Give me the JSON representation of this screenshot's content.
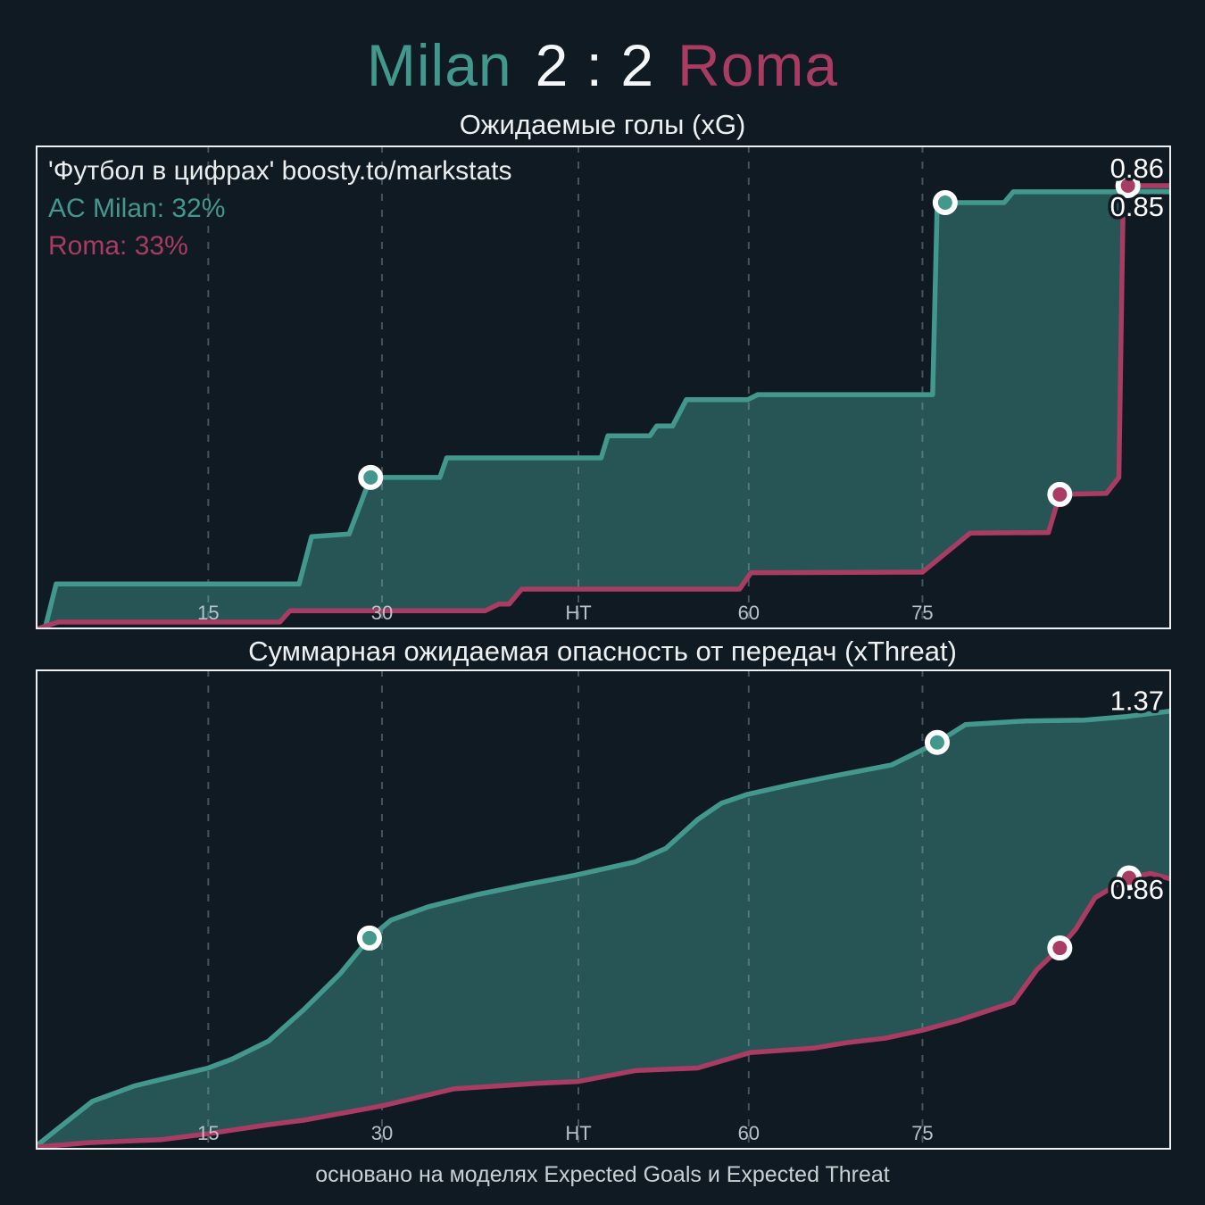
{
  "header": {
    "home_team": "Milan",
    "score": "2 : 2",
    "away_team": "Roma"
  },
  "footer": {
    "text": "основано на моделях Expected Goals и Expected Threat"
  },
  "colors": {
    "bg": "#101a23",
    "home": "#43988e",
    "away": "#a93c62",
    "band_fill": "#43988e",
    "grid": "#9db0ba",
    "tick": "#b9c2c9",
    "value_label": "#ffffff",
    "border": "#eef1f3",
    "marker_ring": "#ffffff"
  },
  "chart_data": {
    "type": "line",
    "x_axis": "match minute (0 - 90+)",
    "charts": [
      {
        "title": "Ожидаемые голы (xG)",
        "watermark": "'Футбол в цифрах' boosty.to/markstats",
        "win_prob": {
          "home": "AC Milan: 32%",
          "away": "Roma: 33%"
        },
        "ylim": [
          0,
          0.94
        ],
        "grid": "vertical-dashed",
        "x_ticks": [
          {
            "label": "15",
            "f": 0.152
          },
          {
            "label": "30",
            "f": 0.305
          },
          {
            "label": "HT",
            "f": 0.478
          },
          {
            "label": "60",
            "f": 0.628
          },
          {
            "label": "75",
            "f": 0.781
          }
        ],
        "series": [
          {
            "name": "AC Milan",
            "color_key": "home",
            "final_value": "0.85",
            "final_label_dy": 17,
            "points": [
              [
                0.0,
                0.0
              ],
              [
                0.008,
                0.0
              ],
              [
                0.018,
                0.088
              ],
              [
                0.232,
                0.088
              ],
              [
                0.243,
                0.18
              ],
              [
                0.276,
                0.185
              ],
              [
                0.295,
                0.295
              ],
              [
                0.356,
                0.295
              ],
              [
                0.362,
                0.333
              ],
              [
                0.498,
                0.333
              ],
              [
                0.504,
                0.376
              ],
              [
                0.541,
                0.376
              ],
              [
                0.547,
                0.395
              ],
              [
                0.561,
                0.395
              ],
              [
                0.573,
                0.446
              ],
              [
                0.627,
                0.446
              ],
              [
                0.636,
                0.456
              ],
              [
                0.79,
                0.456
              ],
              [
                0.794,
                0.829
              ],
              [
                0.853,
                0.829
              ],
              [
                0.861,
                0.85
              ],
              [
                1.0,
                0.85
              ]
            ],
            "goal_markers": [
              [
                0.295,
                0.295
              ],
              [
                0.801,
                0.829
              ]
            ]
          },
          {
            "name": "Roma",
            "color_key": "away",
            "final_value": "0.86",
            "final_label_dy": -19,
            "points": [
              [
                0.0,
                0.0
              ],
              [
                0.02,
                0.014
              ],
              [
                0.215,
                0.014
              ],
              [
                0.224,
                0.036
              ],
              [
                0.396,
                0.036
              ],
              [
                0.408,
                0.049
              ],
              [
                0.417,
                0.049
              ],
              [
                0.428,
                0.078
              ],
              [
                0.62,
                0.078
              ],
              [
                0.63,
                0.11
              ],
              [
                0.781,
                0.111
              ],
              [
                0.823,
                0.187
              ],
              [
                0.892,
                0.188
              ],
              [
                0.902,
                0.262
              ],
              [
                0.943,
                0.264
              ],
              [
                0.954,
                0.295
              ],
              [
                0.958,
                0.862
              ],
              [
                1.0,
                0.862
              ]
            ],
            "goal_markers": [
              [
                0.902,
                0.262
              ],
              [
                0.962,
                0.862
              ]
            ]
          }
        ]
      },
      {
        "title": "Суммарная ожидаемая опасность от передач (xThreat)",
        "watermark": "",
        "win_prob": {
          "home": "",
          "away": ""
        },
        "ylim": [
          0,
          1.5
        ],
        "grid": "vertical-dashed",
        "x_ticks": [
          {
            "label": "15",
            "f": 0.152
          },
          {
            "label": "30",
            "f": 0.305
          },
          {
            "label": "HT",
            "f": 0.478
          },
          {
            "label": "60",
            "f": 0.628
          },
          {
            "label": "75",
            "f": 0.781
          }
        ],
        "series": [
          {
            "name": "AC Milan",
            "color_key": "home",
            "final_value": "1.37",
            "final_label_dy": -11,
            "points": [
              [
                0.0,
                0.01
              ],
              [
                0.02,
                0.067
              ],
              [
                0.05,
                0.151
              ],
              [
                0.087,
                0.199
              ],
              [
                0.152,
                0.255
              ],
              [
                0.173,
                0.283
              ],
              [
                0.205,
                0.339
              ],
              [
                0.236,
                0.437
              ],
              [
                0.268,
                0.549
              ],
              [
                0.294,
                0.661
              ],
              [
                0.313,
                0.717
              ],
              [
                0.346,
                0.759
              ],
              [
                0.388,
                0.796
              ],
              [
                0.433,
                0.829
              ],
              [
                0.475,
                0.857
              ],
              [
                0.528,
                0.899
              ],
              [
                0.555,
                0.941
              ],
              [
                0.583,
                1.031
              ],
              [
                0.604,
                1.082
              ],
              [
                0.627,
                1.11
              ],
              [
                0.669,
                1.143
              ],
              [
                0.701,
                1.166
              ],
              [
                0.754,
                1.202
              ],
              [
                0.794,
                1.272
              ],
              [
                0.819,
                1.328
              ],
              [
                0.872,
                1.339
              ],
              [
                0.924,
                1.342
              ],
              [
                0.961,
                1.353
              ],
              [
                1.0,
                1.37
              ]
            ],
            "goal_markers": [
              [
                0.294,
                0.661
              ],
              [
                0.794,
                1.272
              ]
            ]
          },
          {
            "name": "Roma",
            "color_key": "away",
            "final_value": "0.86",
            "final_label_dy": 12,
            "points": [
              [
                0.0,
                0.008
              ],
              [
                0.047,
                0.022
              ],
              [
                0.11,
                0.031
              ],
              [
                0.152,
                0.05
              ],
              [
                0.205,
                0.078
              ],
              [
                0.236,
                0.092
              ],
              [
                0.305,
                0.137
              ],
              [
                0.368,
                0.19
              ],
              [
                0.441,
                0.207
              ],
              [
                0.478,
                0.213
              ],
              [
                0.528,
                0.247
              ],
              [
                0.583,
                0.255
              ],
              [
                0.629,
                0.303
              ],
              [
                0.685,
                0.317
              ],
              [
                0.714,
                0.334
              ],
              [
                0.748,
                0.348
              ],
              [
                0.781,
                0.373
              ],
              [
                0.813,
                0.404
              ],
              [
                0.861,
                0.46
              ],
              [
                0.882,
                0.563
              ],
              [
                0.902,
                0.63
              ],
              [
                0.916,
                0.689
              ],
              [
                0.933,
                0.787
              ],
              [
                0.953,
                0.829
              ],
              [
                0.963,
                0.849
              ],
              [
                0.982,
                0.863
              ],
              [
                1.0,
                0.845
              ]
            ],
            "goal_markers": [
              [
                0.902,
                0.63
              ],
              [
                0.963,
                0.849
              ]
            ]
          }
        ]
      }
    ]
  }
}
